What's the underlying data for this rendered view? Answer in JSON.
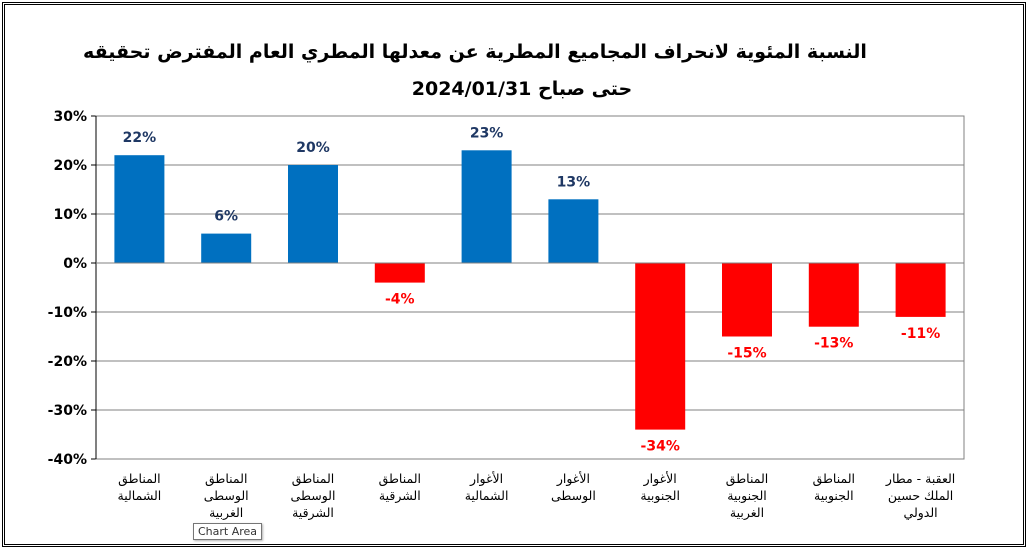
{
  "chart_data": {
    "type": "bar",
    "title_lines": [
      "النسبة المئوية لانحراف المجاميع المطرية عن معدلها المطري العام المفترض تحقيقه",
      "حتى صباح 2024/01/31"
    ],
    "categories": [
      [
        "المناطق",
        "الشمالية"
      ],
      [
        "المناطق",
        "الوسطى",
        "الغربية"
      ],
      [
        "المناطق",
        "الوسطى",
        "الشرقية"
      ],
      [
        "المناطق",
        "الشرقية"
      ],
      [
        "الأغوار",
        "الشمالية"
      ],
      [
        "الأغوار",
        "الوسطى"
      ],
      [
        "الأغوار",
        "الجنوبية"
      ],
      [
        "المناطق",
        "الجنوبية",
        "الغربية"
      ],
      [
        "المناطق",
        "الجنوبية"
      ],
      [
        "العقبة - مطار",
        "الملك حسين",
        "الدولي"
      ]
    ],
    "values": [
      22,
      6,
      20,
      -4,
      23,
      13,
      -34,
      -15,
      -13,
      -11
    ],
    "data_labels": [
      "22%",
      "6%",
      "20%",
      "-4%",
      "23%",
      "13%",
      "-34%",
      "-15%",
      "-13%",
      "-11%"
    ],
    "ylim": [
      -40,
      30
    ],
    "yticks": [
      30,
      20,
      10,
      0,
      -10,
      -20,
      -30,
      -40
    ],
    "ytick_labels": [
      "30%",
      "20%",
      "10%",
      "0%",
      "-10%",
      "-20%",
      "-30%",
      "-40%"
    ],
    "grid": true,
    "colors": {
      "positive_bar": "#0070C0",
      "negative_bar": "#FF0000",
      "positive_label": "#1F3864",
      "negative_label": "#FF0000",
      "grid": "#808080"
    }
  },
  "tooltip": "Chart Area"
}
